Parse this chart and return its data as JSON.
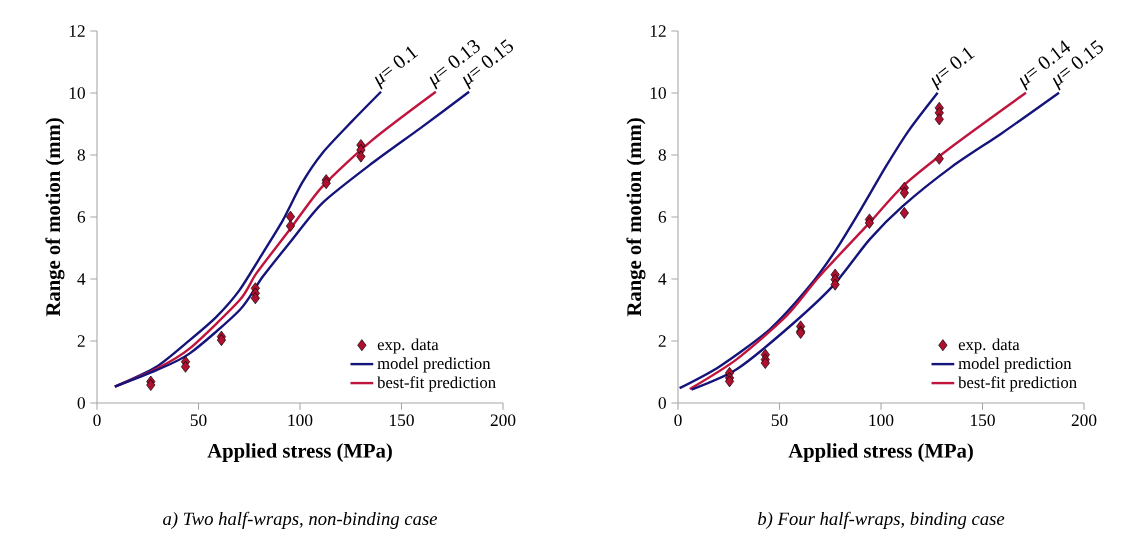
{
  "chart_data": [
    {
      "type": "line",
      "xlabel": "Applied stress (MPa)",
      "ylabel": "Range of motion (mm)",
      "xlim": [
        0,
        200
      ],
      "ylim": [
        0,
        12
      ],
      "xticks": [
        0,
        50,
        100,
        150,
        200
      ],
      "yticks": [
        0,
        2,
        4,
        6,
        8,
        10,
        12
      ],
      "legend": "bottom right",
      "series": [
        {
          "name": "exp. data",
          "type": "scatter",
          "marker": "diamond",
          "color": "#b01030",
          "x": [
            26.5,
            26.5,
            43.6,
            43.6,
            61.3,
            61.3,
            78,
            78,
            78,
            95.3,
            95.3,
            112.9,
            112.9,
            130,
            130,
            130
          ],
          "values": [
            0.69,
            0.58,
            1.33,
            1.17,
            2.14,
            2.03,
            3.7,
            3.54,
            3.38,
            6.01,
            5.71,
            7.19,
            7.09,
            8.32,
            8.16,
            7.95
          ]
        },
        {
          "name": "model prediction",
          "color": "#14147a",
          "x": [
            8.8,
            29.3,
            45.7,
            58.8,
            70.3,
            81.6,
            91.6,
            101,
            111,
            125.8,
            139.9
          ],
          "values": [
            0.53,
            1.17,
            2.03,
            2.78,
            3.65,
            4.83,
            5.9,
            7.1,
            8.06,
            9.1,
            10.04
          ]
        },
        {
          "name": "best-fit prediction",
          "color": "#c0143c",
          "x": [
            8.8,
            29.3,
            45.7,
            70.3,
            78.5,
            94.8,
            111,
            135.6,
            166.9
          ],
          "values": [
            0.53,
            1.1,
            1.76,
            3.32,
            4.18,
            5.58,
            6.98,
            8.48,
            10.04
          ]
        },
        {
          "color": "#14147a",
          "x": [
            8.8,
            29.3,
            45.7,
            70.3,
            81.6,
            94.8,
            111,
            135.6,
            160,
            183.3
          ],
          "values": [
            0.53,
            1.06,
            1.6,
            3.0,
            4.07,
            5.16,
            6.45,
            7.74,
            8.9,
            10.04
          ]
        }
      ],
      "annotations": [
        {
          "text": "*μ*= 0.1",
          "x": 139.9,
          "y": 10.04
        },
        {
          "text": "*μ*= 0.13",
          "x": 166.9,
          "y": 10.04
        },
        {
          "text": "*μ*= 0.15",
          "x": 183.3,
          "y": 10.04
        },
        "*a) Two half-wraps, non-binding case*"
      ]
    },
    {
      "type": "line",
      "xlabel": "Applied stress (MPa)",
      "ylabel": "Range of motion (mm)",
      "xlim": [
        0,
        200
      ],
      "ylim": [
        0,
        12
      ],
      "xticks": [
        0,
        50,
        100,
        150,
        200
      ],
      "yticks": [
        0,
        2,
        4,
        6,
        8,
        10,
        12
      ],
      "legend": "bottom right",
      "series": [
        {
          "name": "exp. data",
          "type": "scatter",
          "marker": "diamond",
          "color": "#b01030",
          "x": [
            25.4,
            25.4,
            25.4,
            43,
            43,
            43,
            60.4,
            60.4,
            60.4,
            77.4,
            77.4,
            77.4,
            94.3,
            94.3,
            111.5,
            111.5,
            111.5,
            128.7,
            128.7,
            128.7,
            128.7
          ],
          "values": [
            0.97,
            0.81,
            0.7,
            1.56,
            1.4,
            1.29,
            2.47,
            2.31,
            2.26,
            4.14,
            3.98,
            3.82,
            5.92,
            5.81,
            6.94,
            6.78,
            6.13,
            9.52,
            9.36,
            9.15,
            7.88
          ]
        },
        {
          "name": "model prediction",
          "color": "#14147a",
          "x": [
            0.8,
            20.5,
            45.1,
            64.8,
            77.9,
            91,
            102.5,
            114,
            127.9
          ],
          "values": [
            0.48,
            1.18,
            2.37,
            3.77,
            4.95,
            6.35,
            7.64,
            8.82,
            10.01
          ]
        },
        {
          "name": "best-fit prediction",
          "color": "#c0143c",
          "x": [
            5.8,
            28.7,
            53.3,
            69.7,
            94.3,
            110.7,
            135.3,
            171.4
          ],
          "values": [
            0.45,
            1.4,
            2.8,
            4.09,
            5.81,
            6.99,
            8.29,
            10.01
          ]
        },
        {
          "color": "#14147a",
          "x": [
            6.6,
            28.7,
            53.3,
            76.2,
            94.3,
            110.7,
            135.3,
            159.9,
            187.7
          ],
          "values": [
            0.43,
            1.08,
            2.37,
            3.77,
            5.27,
            6.35,
            7.64,
            8.72,
            10.01
          ]
        }
      ],
      "annotations": [
        {
          "text": "*μ*= 0.1",
          "x": 127.9,
          "y": 10.01
        },
        {
          "text": "*μ*= 0.14",
          "x": 171.4,
          "y": 10.01
        },
        {
          "text": "*μ*= 0.15",
          "x": 187.7,
          "y": 10.01
        },
        "*b) Four half-wraps, binding case*"
      ]
    }
  ]
}
